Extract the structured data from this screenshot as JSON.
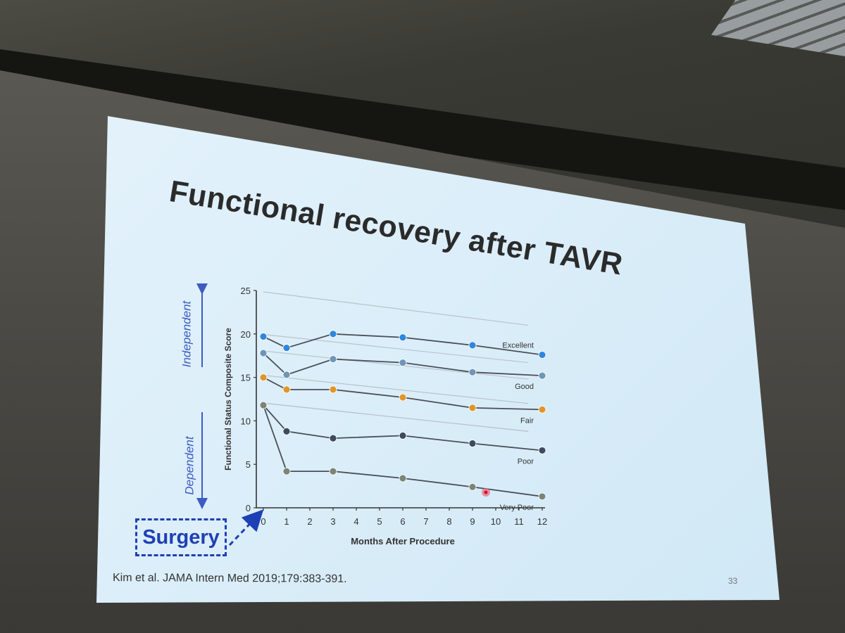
{
  "slide": {
    "title": "Functional recovery after TAVR",
    "citation": "Kim et al. JAMA Intern Med 2019;179:383-391.",
    "page_number": "33",
    "callout": "Surgery",
    "side_labels": {
      "upper": "Independent",
      "lower": "Dependent"
    },
    "colors": {
      "callout": "#1f3fb5",
      "side_label": "#3e5bc4"
    }
  },
  "chart_data": {
    "type": "line",
    "title": "",
    "xlabel": "Months After Procedure",
    "ylabel": "Functional Status Composite Score",
    "xlim": [
      0,
      12
    ],
    "ylim": [
      0,
      25
    ],
    "xticks": [
      0,
      1,
      2,
      3,
      4,
      5,
      6,
      7,
      8,
      9,
      10,
      11,
      12
    ],
    "yticks": [
      0,
      5,
      10,
      15,
      20,
      25
    ],
    "grid": false,
    "legend": "inline labels at line ends",
    "series": [
      {
        "name": "Excellent",
        "color": "#2e86de",
        "x": [
          0,
          1,
          3,
          6,
          9,
          12
        ],
        "y": [
          19.7,
          18.4,
          20.0,
          19.6,
          18.7,
          17.6
        ]
      },
      {
        "name": "Good",
        "color": "#6f95b8",
        "x": [
          0,
          1,
          3,
          6,
          9,
          12
        ],
        "y": [
          17.8,
          15.3,
          17.1,
          16.7,
          15.6,
          15.2
        ]
      },
      {
        "name": "Fair",
        "color": "#e0952b",
        "x": [
          0,
          1,
          3,
          6,
          9,
          12
        ],
        "y": [
          15.0,
          13.6,
          13.6,
          12.7,
          11.5,
          11.3
        ]
      },
      {
        "name": "Poor",
        "color": "#3e4a5e",
        "x": [
          0,
          1,
          3,
          6,
          9,
          12
        ],
        "y": [
          11.8,
          8.8,
          8.0,
          8.3,
          7.4,
          6.6
        ]
      },
      {
        "name": "Very Poor",
        "color": "#7c8478",
        "x": [
          0,
          1,
          3,
          6,
          9,
          12
        ],
        "y": [
          11.8,
          4.2,
          4.2,
          3.4,
          2.4,
          1.3
        ]
      }
    ]
  }
}
